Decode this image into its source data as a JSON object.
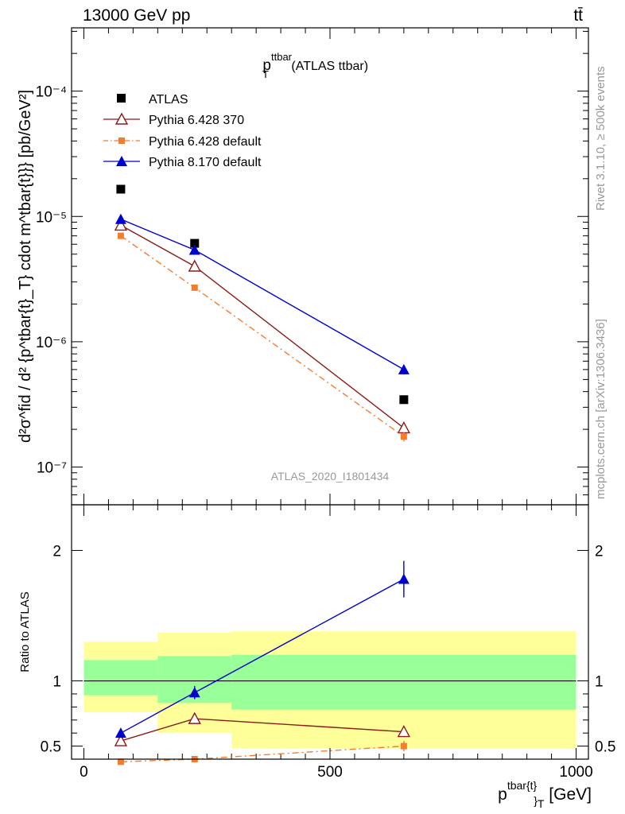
{
  "header": {
    "left": "13000 GeV pp",
    "right": "tt̄"
  },
  "side_labels": {
    "rivet": "Rivet 3.1.10, ≥ 500k events",
    "mcplots": "mcplots.cern.ch [arXiv:1306.3436]"
  },
  "main_plot": {
    "title_main": "p",
    "title_sup": "ttbar",
    "title_sub": "T",
    "title_rest": " (ATLAS ttbar)",
    "analysis_id": "ATLAS_2020_I1801434",
    "ylabel": "d²σ^fid / d² {p^tbar{t}_T} cdot m^tbar{t}}} [pb/GeV²]",
    "ytick_labels": [
      "10⁻⁷",
      "10⁻⁶",
      "10⁻⁵",
      "10⁻⁴"
    ]
  },
  "ratio_plot": {
    "ylabel": "Ratio to ATLAS",
    "ytick_labels": [
      "0.5",
      "1",
      "2"
    ],
    "xtick_labels": [
      "0",
      "500",
      "1000"
    ]
  },
  "xlabel": {
    "main": "p",
    "sup": "tbar{t}",
    "sub": "}",
    "subT": "T",
    "unit": " [GeV]"
  },
  "legend": {
    "placement": "upper-left",
    "entries": [
      "ATLAS",
      "Pythia 6.428 370",
      "Pythia 6.428 default",
      "Pythia 8.170 default"
    ]
  },
  "chart_data": [
    {
      "type": "scatter",
      "panel": "main",
      "title": "p_T^ttbar (ATLAS ttbar)",
      "xlabel": "p_T^tbar{t} [GeV]",
      "ylabel": "d²σ^fid / d²{p_T^tbar{t}} cdot m^tbar{t} [pb/GeV²]",
      "yscale": "log",
      "xlim": [
        -25,
        1025
      ],
      "ylim": [
        5e-08,
        0.00032
      ],
      "series": [
        {
          "name": "ATLAS",
          "color": "#000000",
          "marker": "square",
          "x": [
            75,
            225,
            650
          ],
          "y": [
            1.65e-05,
            6.1e-06,
            3.45e-07
          ]
        },
        {
          "name": "Pythia 6.428 370",
          "color": "#8b1a1a",
          "marker": "open-triangle",
          "line": "solid",
          "x": [
            75,
            225,
            650
          ],
          "y": [
            8.5e-06,
            4e-06,
            2.05e-07
          ],
          "yerr": [
            2e-07,
            1.2e-07,
            1.2e-08
          ]
        },
        {
          "name": "Pythia 6.428 default",
          "color": "#f47c2c",
          "marker": "small-square",
          "line": "dashdot",
          "x": [
            75,
            225,
            650
          ],
          "y": [
            7e-06,
            2.7e-06,
            1.75e-07
          ],
          "yerr": [
            1.5e-07,
            8e-08,
            1.5e-08
          ]
        },
        {
          "name": "Pythia 8.170 default",
          "color": "#0000cc",
          "marker": "filled-triangle",
          "line": "solid",
          "x": [
            75,
            225,
            650
          ],
          "y": [
            9.5e-06,
            5.4e-06,
            6e-07
          ],
          "yerr": [
            2.5e-07,
            1.6e-07,
            5e-08
          ]
        }
      ]
    },
    {
      "type": "line",
      "panel": "ratio",
      "ylabel": "Ratio to ATLAS",
      "xlabel": "p_T^tbar{t} [GeV]",
      "xlim": [
        -25,
        1025
      ],
      "ylim": [
        0.4,
        2.35
      ],
      "bins": [
        {
          "x": [
            0,
            150
          ],
          "yellow": [
            0.76,
            1.3
          ],
          "green": [
            0.89,
            1.16
          ]
        },
        {
          "x": [
            150,
            300
          ],
          "yellow": [
            0.6,
            1.37
          ],
          "green": [
            0.83,
            1.19
          ]
        },
        {
          "x": [
            300,
            1000
          ],
          "yellow": [
            0.48,
            1.38
          ],
          "green": [
            0.78,
            1.2
          ]
        }
      ],
      "reference": 1.0,
      "series": [
        {
          "name": "Pythia 6.428 370",
          "color": "#8b1a1a",
          "marker": "open-triangle",
          "line": "solid",
          "x": [
            75,
            225,
            650
          ],
          "y": [
            0.54,
            0.71,
            0.61
          ],
          "yerr": [
            0.02,
            0.02,
            0.04
          ]
        },
        {
          "name": "Pythia 6.428 default",
          "color": "#f47c2c",
          "marker": "small-square",
          "line": "dashdot",
          "x": [
            75,
            225,
            650
          ],
          "y": [
            0.38,
            0.4,
            0.5
          ],
          "yerr": [
            0.015,
            0.02,
            0.04
          ]
        },
        {
          "name": "Pythia 8.170 default",
          "color": "#0000cc",
          "marker": "filled-triangle",
          "line": "solid",
          "x": [
            75,
            225,
            650
          ],
          "y": [
            0.6,
            0.91,
            1.78
          ],
          "yerr": [
            0.03,
            0.05,
            0.14
          ]
        }
      ]
    }
  ]
}
